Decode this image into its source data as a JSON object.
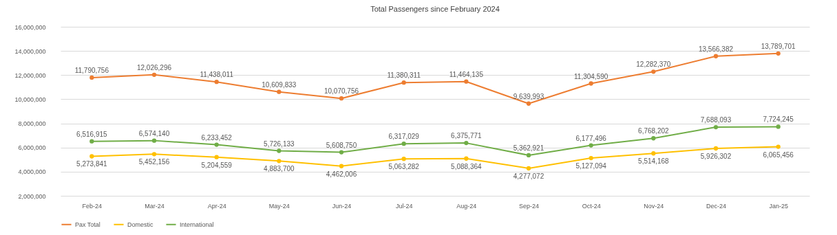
{
  "chart_data": {
    "type": "line",
    "title": "Total Passengers since February 2024",
    "categories": [
      "Feb-24",
      "Mar-24",
      "Apr-24",
      "May-24",
      "Jun-24",
      "Jul-24",
      "Aug-24",
      "Sep-24",
      "Oct-24",
      "Nov-24",
      "Dec-24",
      "Jan-25"
    ],
    "series": [
      {
        "name": "Pax Total",
        "color": "#ed7d31",
        "values": [
          11790756,
          12026296,
          11438011,
          10609833,
          10070756,
          11380311,
          11464135,
          9639993,
          11304590,
          12282370,
          13566382,
          13789701
        ],
        "value_labels": [
          "11,790,756",
          "12,026,296",
          "11,438,011",
          "10,609,833",
          "10,070,756",
          "11,380,311",
          "11,464,135",
          "9,639,993",
          "11,304,590",
          "12,282,370",
          "13,566,382",
          "13,789,701"
        ]
      },
      {
        "name": "Domestic",
        "color": "#ffc000",
        "values": [
          5273841,
          5452156,
          5204559,
          4883700,
          4462006,
          5063282,
          5088364,
          4277072,
          5127094,
          5514168,
          5926302,
          6065456
        ],
        "value_labels": [
          "5,273,841",
          "5,452,156",
          "5,204,559",
          "4,883,700",
          "4,462,006",
          "5,063,282",
          "5,088,364",
          "4,277,072",
          "5,127,094",
          "5,514,168",
          "5,926,302",
          "6,065,456"
        ]
      },
      {
        "name": "International",
        "color": "#70ad47",
        "values": [
          6516915,
          6574140,
          6233452,
          5726133,
          5608750,
          6317029,
          6375771,
          5362921,
          6177496,
          6768202,
          7688093,
          7724245
        ],
        "value_labels": [
          "6,516,915",
          "6,574,140",
          "6,233,452",
          "5,726,133",
          "5,608,750",
          "6,317,029",
          "6,375,771",
          "5,362,921",
          "6,177,496",
          "6,768,202",
          "7,688,093",
          "7,724,245"
        ]
      }
    ],
    "ylim": [
      2000000,
      16000000
    ],
    "yticks": [
      {
        "value": 2000000,
        "label": "2,000,000"
      },
      {
        "value": 4000000,
        "label": "4,000,000"
      },
      {
        "value": 6000000,
        "label": "6,000,000"
      },
      {
        "value": 8000000,
        "label": "8,000,000"
      },
      {
        "value": 10000000,
        "label": "10,000,000"
      },
      {
        "value": 12000000,
        "label": "12,000,000"
      },
      {
        "value": 14000000,
        "label": "14,000,000"
      },
      {
        "value": 16000000,
        "label": "16,000,000"
      }
    ],
    "grid": "y",
    "legend": "bottom",
    "marker": "circle",
    "line_style": "solid"
  }
}
